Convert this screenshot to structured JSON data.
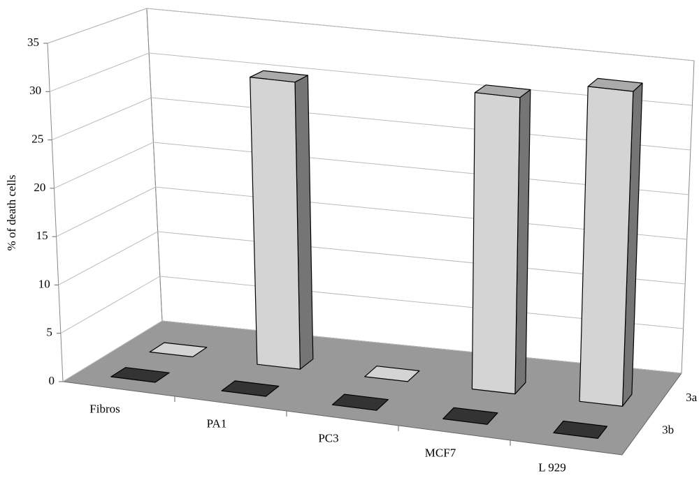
{
  "chart_data": {
    "type": "bar3d",
    "y_label": "% of death cells",
    "categories": [
      "Fibros",
      "PA1",
      "PC3",
      "MCF7",
      "L 929"
    ],
    "series": [
      {
        "name": "3a",
        "color": "#d4d4d4",
        "values": [
          0,
          31,
          0,
          32,
          34
        ]
      },
      {
        "name": "3b",
        "color": "#333333",
        "values": [
          0,
          0,
          0,
          0,
          0
        ]
      }
    ],
    "ylim": [
      0,
      35
    ],
    "yticks": [
      0,
      5,
      10,
      15,
      20,
      25,
      30,
      35
    ],
    "grid": true
  }
}
